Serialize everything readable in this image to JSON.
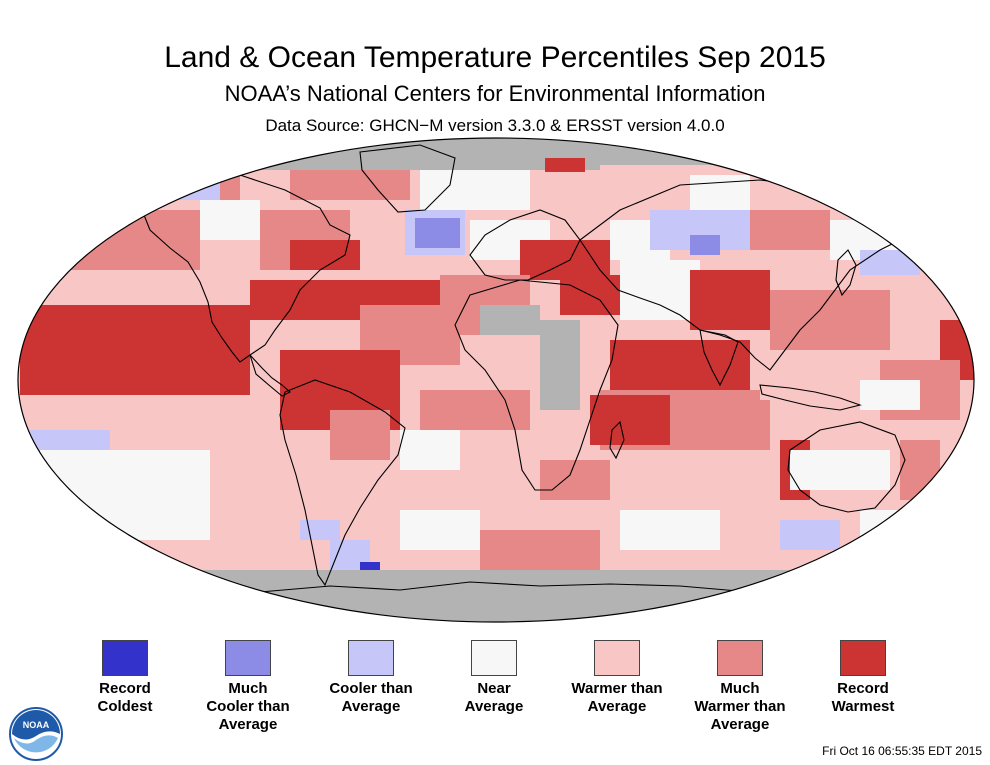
{
  "header": {
    "title": "Land & Ocean Temperature Percentiles Sep 2015",
    "subtitle": "NOAA’s National Centers for Environmental Information",
    "source": "Data Source: GHCN−M version 3.3.0 & ERSST version 4.0.0"
  },
  "map": {
    "projection": "Robinson",
    "no_data_color": "#b3b3b3",
    "ocean_default_category": "warmer",
    "outline_color": "#000000"
  },
  "legend": {
    "items": [
      {
        "lines": [
          "Record",
          "Coldest"
        ],
        "color": "#3333cc"
      },
      {
        "lines": [
          "Much",
          "Cooler than",
          "Average"
        ],
        "color": "#8c8ce6"
      },
      {
        "lines": [
          "Cooler than",
          "Average"
        ],
        "color": "#c6c6f8"
      },
      {
        "lines": [
          "Near",
          "Average"
        ],
        "color": "#f7f7f7"
      },
      {
        "lines": [
          "Warmer than",
          "Average"
        ],
        "color": "#f9c6c6"
      },
      {
        "lines": [
          "Much",
          "Warmer than",
          "Average"
        ],
        "color": "#e68888"
      },
      {
        "lines": [
          "Record",
          "Warmest"
        ],
        "color": "#cc3333"
      }
    ]
  },
  "logo": {
    "text": "NOAA",
    "primary_color": "#1f5aa8",
    "accent_color": "#7fb8e8"
  },
  "footer": {
    "timestamp": "Fri Oct 16 06:55:35 EDT 2015"
  }
}
